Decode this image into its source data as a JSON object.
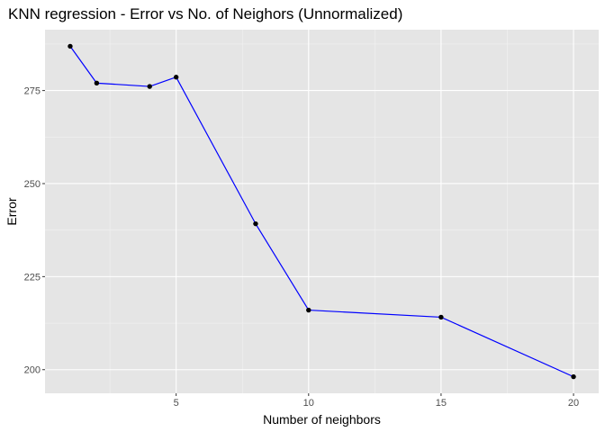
{
  "chart_data": {
    "type": "line",
    "title": "KNN regression - Error vs No. of Neighors (Unnormalized)",
    "xlabel": "Number of neighbors",
    "ylabel": "Error",
    "x": [
      1,
      2,
      4,
      5,
      8,
      10,
      15,
      20
    ],
    "series": [
      {
        "values": [
          286.9,
          277.0,
          276.1,
          278.6,
          239.2,
          216.0,
          214.1,
          198.1
        ]
      }
    ],
    "xlim": [
      0.05,
      20.95
    ],
    "ylim": [
      193.65,
      291.35
    ],
    "x_ticks": [
      5,
      10,
      15,
      20
    ],
    "x_tick_labels": [
      "5",
      "10",
      "15",
      "20"
    ],
    "x_minor_ticks": [
      2.5,
      7.5,
      12.5,
      17.5
    ],
    "y_ticks": [
      200,
      225,
      250,
      275
    ],
    "y_tick_labels": [
      "200",
      "225",
      "250",
      "275"
    ],
    "y_minor_ticks": [
      212.5,
      237.5,
      262.5,
      287.5
    ],
    "grid": true,
    "legend": "none",
    "colors": {
      "panel_background": "#e5e5e5",
      "grid_major": "#ffffff",
      "grid_minor": "#f2f2f2",
      "line": "#0000ff",
      "point": "#000000",
      "tick": "#333333"
    }
  }
}
